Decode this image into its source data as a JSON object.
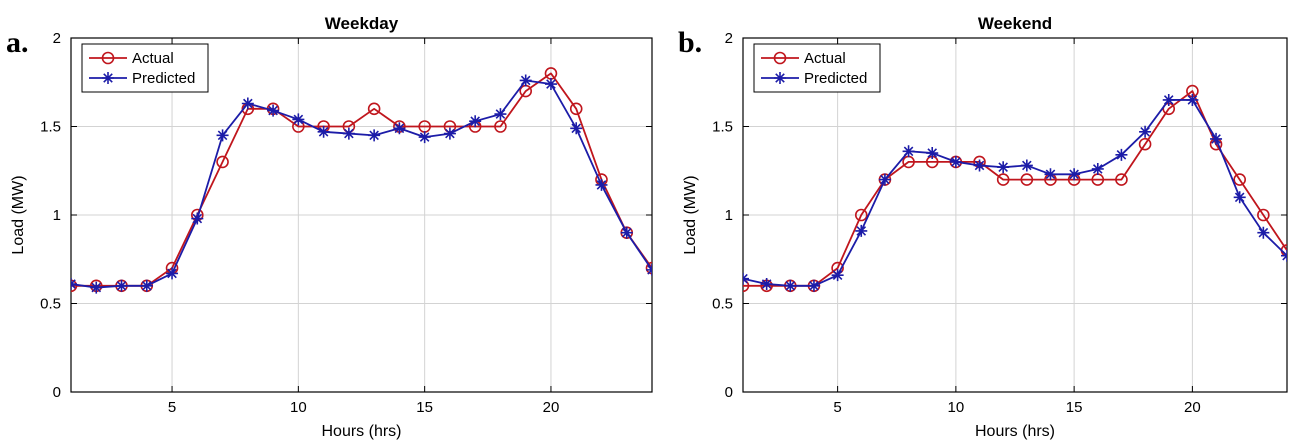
{
  "colors": {
    "actual": "#c0161d",
    "predicted": "#1c1ca8",
    "grid": "#d3d3d3",
    "axis": "#000000"
  },
  "chart_data": [
    {
      "panel_label": "a.",
      "type": "line",
      "title": "Weekday",
      "xlabel": "Hours (hrs)",
      "ylabel": "Load (MW)",
      "xlim": [
        1,
        24
      ],
      "ylim": [
        0,
        2
      ],
      "xticks": [
        5,
        10,
        15,
        20
      ],
      "xtick_labels": [
        "5",
        "10",
        "15",
        "20"
      ],
      "yticks": [
        0,
        0.5,
        1,
        1.5,
        2
      ],
      "ytick_labels": [
        "0",
        "0.5",
        "1",
        "1.5",
        "2"
      ],
      "grid": true,
      "legend_position": "top-left",
      "x": [
        1,
        2,
        3,
        4,
        5,
        6,
        7,
        8,
        9,
        10,
        11,
        12,
        13,
        14,
        15,
        16,
        17,
        18,
        19,
        20,
        21,
        22,
        23,
        24
      ],
      "series": [
        {
          "name": "Actual",
          "marker": "circle",
          "values": [
            0.6,
            0.6,
            0.6,
            0.6,
            0.7,
            1.0,
            1.3,
            1.6,
            1.6,
            1.5,
            1.5,
            1.5,
            1.6,
            1.5,
            1.5,
            1.5,
            1.5,
            1.5,
            1.7,
            1.8,
            1.6,
            1.2,
            0.9,
            0.7
          ]
        },
        {
          "name": "Predicted",
          "marker": "star",
          "values": [
            0.61,
            0.59,
            0.6,
            0.6,
            0.67,
            0.98,
            1.45,
            1.63,
            1.59,
            1.54,
            1.47,
            1.46,
            1.45,
            1.49,
            1.44,
            1.46,
            1.53,
            1.57,
            1.76,
            1.74,
            1.49,
            1.17,
            0.9,
            0.69
          ]
        }
      ]
    },
    {
      "panel_label": "b.",
      "type": "line",
      "title": "Weekend",
      "xlabel": "Hours (hrs)",
      "ylabel": "Load (MW)",
      "xlim": [
        1,
        24
      ],
      "ylim": [
        0,
        2
      ],
      "xticks": [
        5,
        10,
        15,
        20
      ],
      "xtick_labels": [
        "5",
        "10",
        "15",
        "20"
      ],
      "yticks": [
        0,
        0.5,
        1,
        1.5,
        2
      ],
      "ytick_labels": [
        "0",
        "0.5",
        "1",
        "1.5",
        "2"
      ],
      "grid": true,
      "legend_position": "top-left",
      "x": [
        1,
        2,
        3,
        4,
        5,
        6,
        7,
        8,
        9,
        10,
        11,
        12,
        13,
        14,
        15,
        16,
        17,
        18,
        19,
        20,
        21,
        22,
        23,
        24
      ],
      "series": [
        {
          "name": "Actual",
          "marker": "circle",
          "values": [
            0.6,
            0.6,
            0.6,
            0.6,
            0.7,
            1.0,
            1.2,
            1.3,
            1.3,
            1.3,
            1.3,
            1.2,
            1.2,
            1.2,
            1.2,
            1.2,
            1.2,
            1.4,
            1.6,
            1.7,
            1.4,
            1.2,
            1.0,
            0.8
          ]
        },
        {
          "name": "Predicted",
          "marker": "star",
          "values": [
            0.64,
            0.61,
            0.6,
            0.6,
            0.66,
            0.91,
            1.2,
            1.36,
            1.35,
            1.3,
            1.28,
            1.27,
            1.28,
            1.23,
            1.23,
            1.26,
            1.34,
            1.47,
            1.65,
            1.65,
            1.43,
            1.1,
            0.9,
            0.77
          ]
        }
      ]
    }
  ]
}
